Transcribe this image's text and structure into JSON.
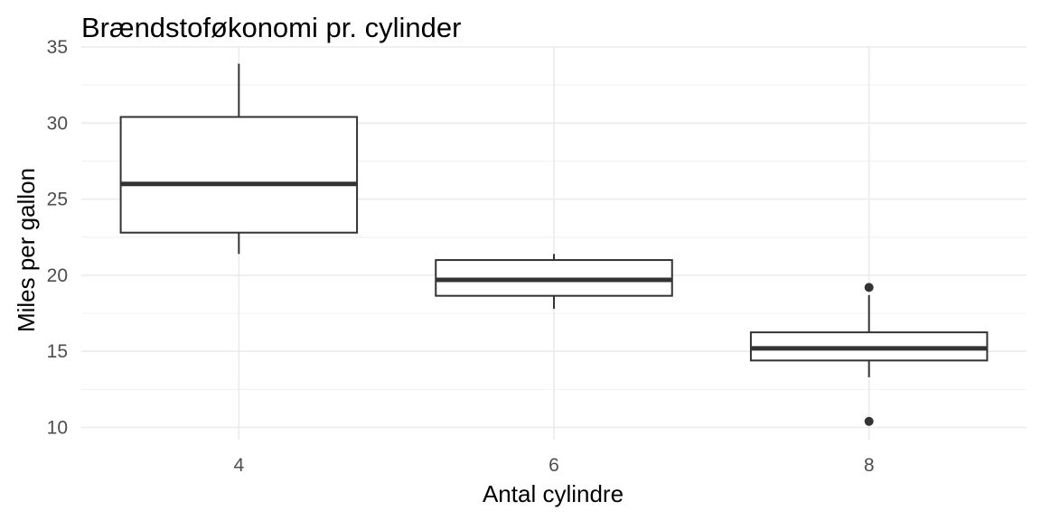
{
  "chart_data": {
    "type": "boxplot",
    "title": "Brændstoføkonomi pr. cylinder",
    "xlabel": "Antal cylindre",
    "ylabel": "Miles per gallon",
    "ylim": [
      9.2,
      35
    ],
    "y_ticks": [
      10,
      15,
      20,
      25,
      30,
      35
    ],
    "categories": [
      "4",
      "6",
      "8"
    ],
    "grid": true,
    "colors": {
      "box_stroke": "#333333",
      "box_fill": "#ffffff",
      "grid": "#ebebeb",
      "tick_text": "#4d4d4d"
    },
    "boxes": [
      {
        "category": "4",
        "whisker_low": 21.4,
        "q1": 22.8,
        "median": 26.0,
        "q3": 30.4,
        "whisker_high": 33.9,
        "outliers": []
      },
      {
        "category": "6",
        "whisker_low": 17.8,
        "q1": 18.65,
        "median": 19.7,
        "q3": 21.0,
        "whisker_high": 21.4,
        "outliers": []
      },
      {
        "category": "8",
        "whisker_low": 13.3,
        "q1": 14.4,
        "median": 15.2,
        "q3": 16.25,
        "whisker_high": 18.7,
        "outliers": [
          10.4,
          19.2
        ]
      }
    ]
  }
}
